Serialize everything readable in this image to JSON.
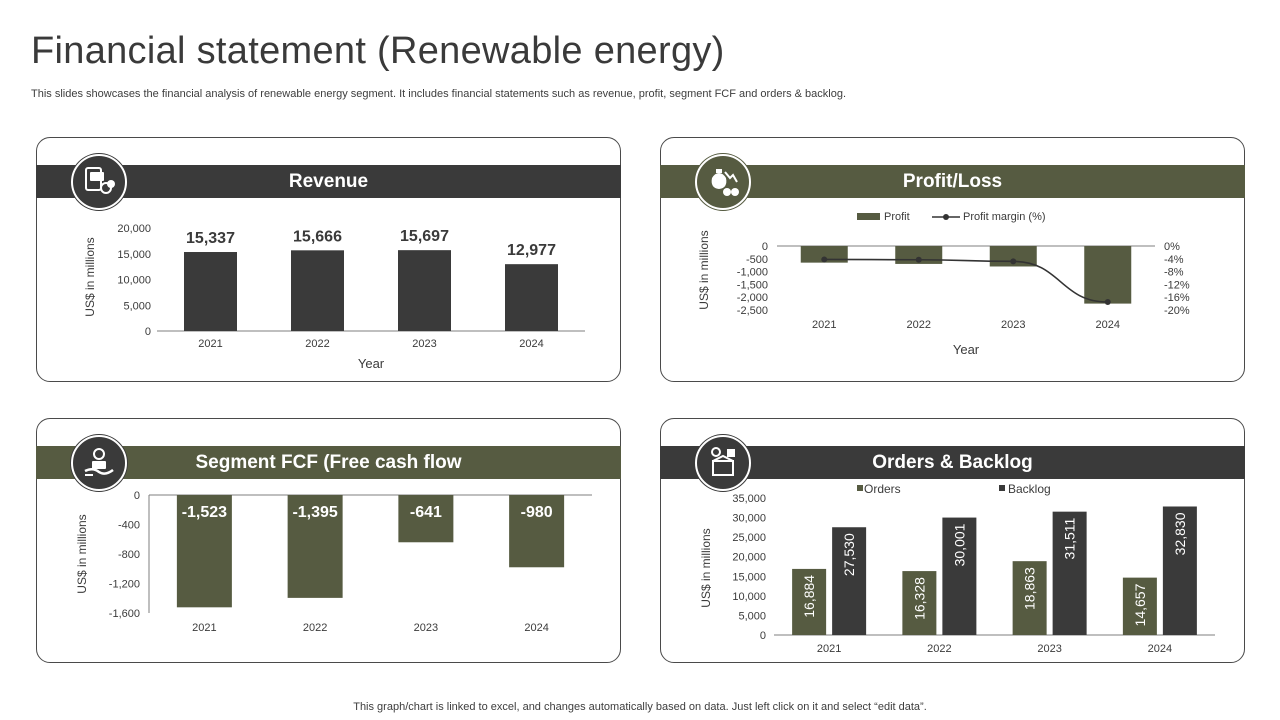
{
  "page": {
    "title": "Financial statement (Renewable energy)",
    "subtitle": "This slides showcases the financial analysis of renewable energy segment. It includes financial statements such as revenue, profit, segment FCF and orders & backlog.",
    "footer": "This graph/chart is linked to excel, and changes automatically based on data. Just left click on it and select “edit data”."
  },
  "colors": {
    "dark": "#3a3a3a",
    "olive": "#565b41",
    "axis": "#7f7f7f",
    "text": "#3b3b3b"
  },
  "icons": {
    "revenue": "money-document-icon",
    "profit": "money-bag-loss-icon",
    "fcf": "cash-hand-icon",
    "orders": "box-order-icon"
  },
  "chart_data": [
    {
      "id": "revenue",
      "type": "bar",
      "title": "Revenue",
      "categories": [
        "2021",
        "2022",
        "2023",
        "2024"
      ],
      "series": [
        {
          "values": [
            15337,
            15666,
            15697,
            12977
          ]
        }
      ],
      "data_labels": [
        "15,337",
        "15,666",
        "15,697",
        "12,977"
      ],
      "xlabel": "Year",
      "ylabel": "US$ in millions",
      "ylim": [
        0,
        20000
      ],
      "yticks": [
        0,
        5000,
        10000,
        15000,
        20000
      ],
      "ytick_labels": [
        "0",
        "5,000",
        "10,000",
        "15,000",
        "20,000"
      ],
      "grid": false
    },
    {
      "id": "profit",
      "type": "bar",
      "title": "Profit/Loss",
      "categories": [
        "2021",
        "2022",
        "2023",
        "2024"
      ],
      "series": [
        {
          "name": "Profit",
          "type": "bar",
          "values": [
            -650,
            -700,
            -800,
            -2250
          ]
        },
        {
          "name": "Profit margin (%)",
          "type": "line",
          "axis": "right",
          "values": [
            -4.2,
            -4.3,
            -4.8,
            -17.5
          ]
        }
      ],
      "xlabel": "Year",
      "ylabel": "US$ in millions",
      "ylim": [
        -2500,
        0
      ],
      "yticks": [
        0,
        -500,
        -1000,
        -1500,
        -2000,
        -2500
      ],
      "ytick_labels": [
        "0",
        "-500",
        "-1,000",
        "-1,500",
        "-2,000",
        "-2,500"
      ],
      "y2lim": [
        -20,
        0
      ],
      "y2ticks": [
        0,
        -4,
        -8,
        -12,
        -16,
        -20
      ],
      "y2tick_labels": [
        "0%",
        "-4%",
        "-8%",
        "-12%",
        "-16%",
        "-20%"
      ],
      "legend": "top-center",
      "grid": false
    },
    {
      "id": "fcf",
      "type": "bar",
      "title": "Segment FCF (Free cash flow",
      "categories": [
        "2021",
        "2022",
        "2023",
        "2024"
      ],
      "series": [
        {
          "values": [
            -1523,
            -1395,
            -641,
            -980
          ]
        }
      ],
      "data_labels": [
        "-1,523",
        "-1,395",
        "-641",
        "-980"
      ],
      "ylabel": "US$ in millions",
      "ylim": [
        -1600,
        0
      ],
      "yticks": [
        0,
        -400,
        -800,
        -1200,
        -1600
      ],
      "ytick_labels": [
        "0",
        "-400",
        "-800",
        "-1,200",
        "-1,600"
      ],
      "grid": false
    },
    {
      "id": "orders",
      "type": "bar",
      "title": "Orders & Backlog",
      "categories": [
        "2021",
        "2022",
        "2023",
        "2024"
      ],
      "series": [
        {
          "name": "Orders",
          "values": [
            16884,
            16328,
            18863,
            14657
          ],
          "data_labels": [
            "16,884",
            "16,328",
            "18,863",
            "14,657"
          ]
        },
        {
          "name": "Backlog",
          "values": [
            27530,
            30001,
            31511,
            32830
          ],
          "data_labels": [
            "27,530",
            "30,001",
            "31,511",
            "32,830"
          ]
        }
      ],
      "ylabel": "US$ in millions",
      "ylim": [
        0,
        35000
      ],
      "yticks": [
        0,
        5000,
        10000,
        15000,
        20000,
        25000,
        30000,
        35000
      ],
      "ytick_labels": [
        "0",
        "5,000",
        "10,000",
        "15,000",
        "20,000",
        "25,000",
        "30,000",
        "35,000"
      ],
      "legend": "top-center",
      "grid": false
    }
  ]
}
